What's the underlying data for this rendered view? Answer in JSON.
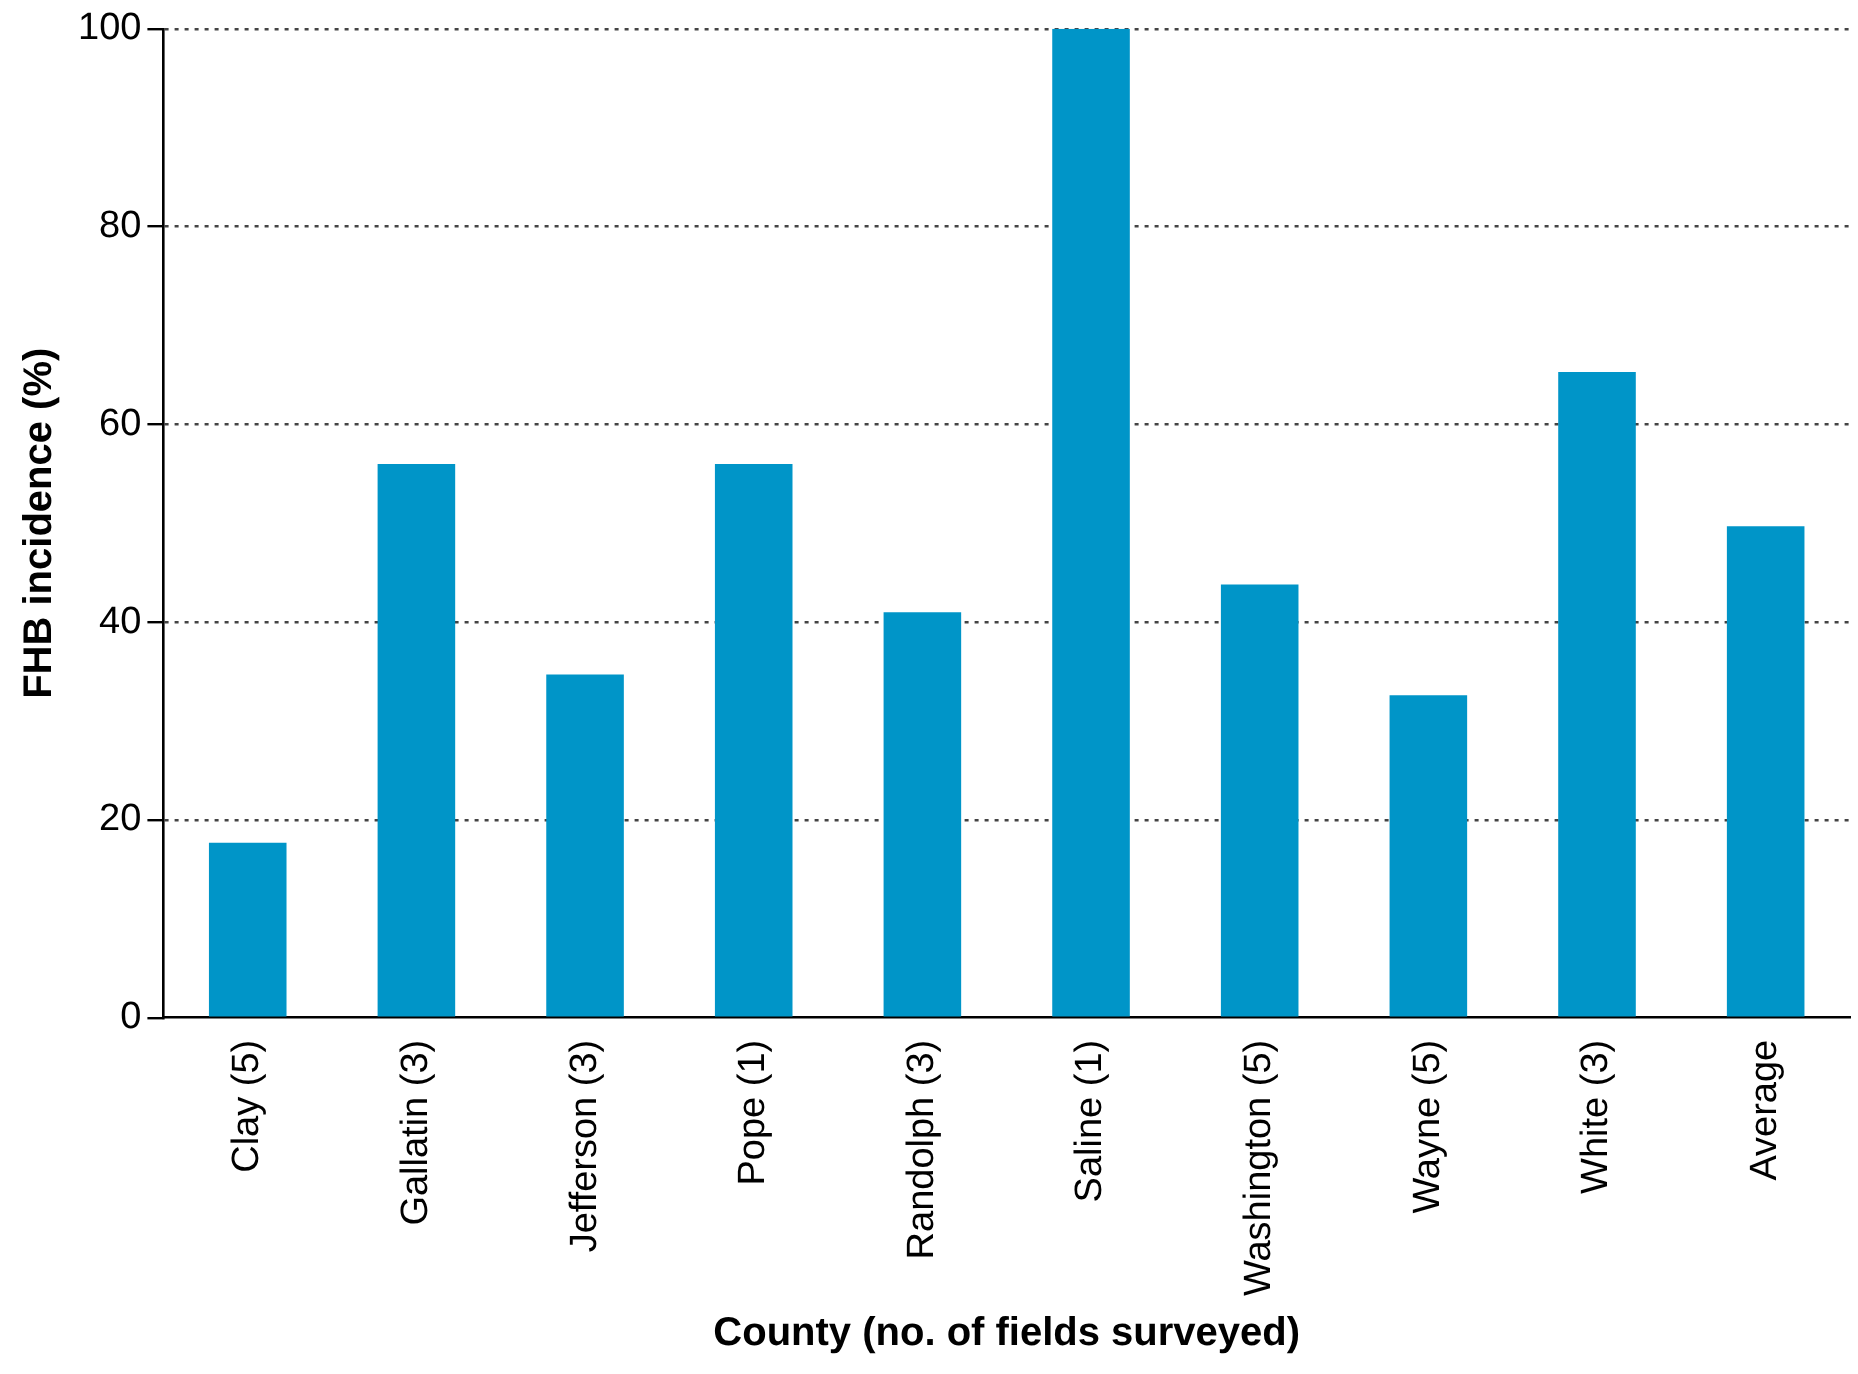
{
  "chart_data": {
    "type": "bar",
    "xlabel": "County (no. of fields surveyed)",
    "ylabel": "FHB incidence (%)",
    "categories": [
      "Clay (5)",
      "Gallatin (3)",
      "Jefferson (3)",
      "Pope (1)",
      "Randolph (3)",
      "Saline (1)",
      "Washington (5)",
      "Wayne (5)",
      "White (3)",
      "Average"
    ],
    "values": [
      17.7,
      56,
      34.7,
      56,
      41,
      100,
      43.8,
      32.6,
      65.3,
      49.7
    ],
    "color": "#0095c8",
    "ylim": [
      0,
      100
    ],
    "yticks": [
      0,
      20,
      40,
      60,
      80,
      100
    ],
    "grid": "y",
    "legend": false
  }
}
